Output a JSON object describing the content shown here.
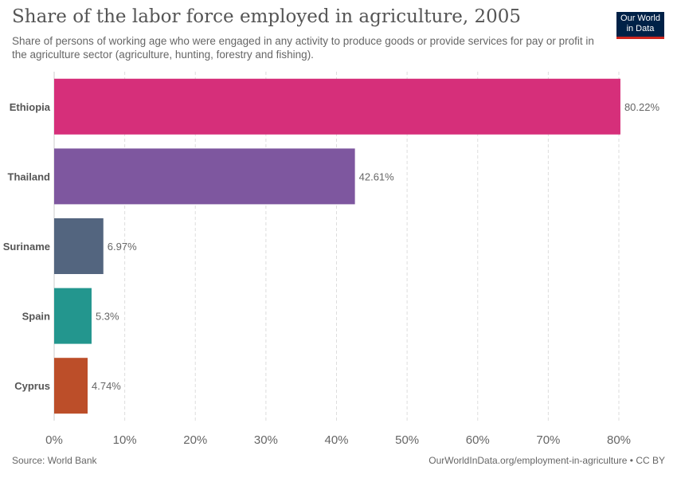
{
  "header": {
    "title": "Share of the labor force employed in agriculture, 2005",
    "subtitle": "Share of persons of working age who were engaged in any activity to produce goods or provide services for pay or profit in the agriculture sector (agriculture, hunting, forestry and fishing).",
    "logo_line1": "Our World",
    "logo_line2": "in Data"
  },
  "footer": {
    "source": "Source: World Bank",
    "link": "OurWorldInData.org/employment-in-agriculture • CC BY"
  },
  "chart_data": {
    "type": "bar",
    "orientation": "horizontal",
    "title": "Share of the labor force employed in agriculture, 2005",
    "categories": [
      "Ethiopia",
      "Thailand",
      "Suriname",
      "Spain",
      "Cyprus"
    ],
    "values": [
      80.22,
      42.61,
      6.97,
      5.3,
      4.74
    ],
    "value_labels": [
      "80.22%",
      "42.61%",
      "6.97%",
      "5.3%",
      "4.74%"
    ],
    "colors": [
      "#d62f7a",
      "#7e579f",
      "#53657f",
      "#23968e",
      "#bc4e29"
    ],
    "xlim": [
      0,
      80
    ],
    "xticks": [
      0,
      10,
      20,
      30,
      40,
      50,
      60,
      70,
      80
    ],
    "xtick_labels": [
      "0%",
      "10%",
      "20%",
      "30%",
      "40%",
      "50%",
      "60%",
      "70%",
      "80%"
    ],
    "grid": "vertical-dashed"
  }
}
